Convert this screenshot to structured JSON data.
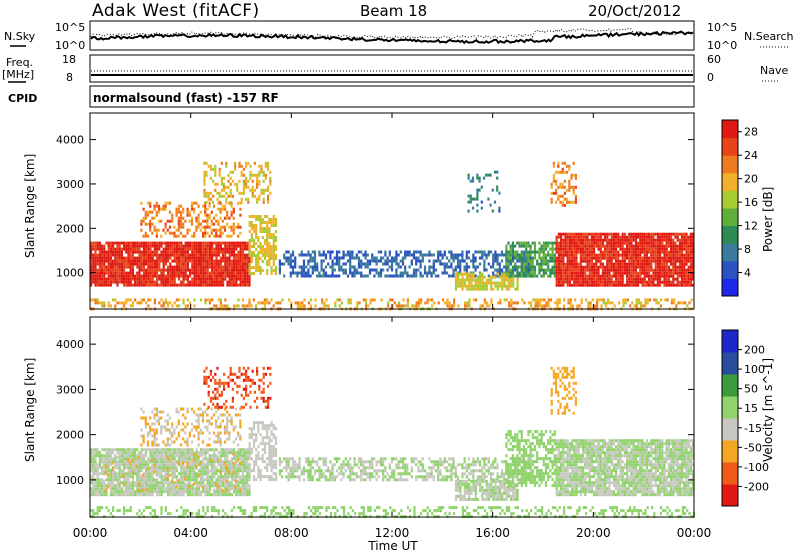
{
  "header": {
    "radar": "Adak West (fitACF)",
    "beam": "Beam 18",
    "date": "20/Oct/2012"
  },
  "top_panels": {
    "nsky_label": "N.Sky",
    "nsearch_label": "N.Search",
    "nsky_ticks": [
      "10^5",
      "10^0"
    ],
    "nsearch_ticks": [
      "10^5",
      "10^0"
    ],
    "freq_label_1": "Freq.",
    "freq_label_2": "[MHz]",
    "freq_ticks": [
      "18",
      "8"
    ],
    "nave_label": "Nave",
    "nave_ticks": [
      "60",
      "0"
    ],
    "cpid_label": "CPID",
    "cpid_text": "normalsound (fast) -157 RF"
  },
  "colors": {
    "ground_scatter": "#c8c8c0",
    "background": "#ffffff"
  },
  "chart_data": [
    {
      "type": "heatmap",
      "name": "power",
      "ylabel": "Slant Range [km]",
      "x_ticks": [
        "00:00",
        "04:00",
        "08:00",
        "12:00",
        "16:00",
        "20:00",
        "00:00"
      ],
      "xlim_hours": [
        0,
        24
      ],
      "y_ticks": [
        "1000",
        "2000",
        "3000",
        "4000"
      ],
      "ylim_km": [
        180,
        4600
      ],
      "colorbar": {
        "label": "Power [dB]",
        "ticks": [
          "4",
          "8",
          "12",
          "16",
          "20",
          "24",
          "28"
        ],
        "range": [
          0,
          30
        ],
        "colors": [
          "#1d28e8",
          "#2a52c0",
          "#3a7a9a",
          "#2e8a55",
          "#5fae3a",
          "#a6cc33",
          "#f2b12a",
          "#f07a20",
          "#e8431a",
          "#e01a12"
        ]
      },
      "regions": [
        {
          "t": [
            0.0,
            6.3
          ],
          "r": [
            700,
            1700
          ],
          "value": 28,
          "density": 0.92
        },
        {
          "t": [
            6.3,
            7.4
          ],
          "r": [
            1000,
            2300
          ],
          "value": 18,
          "density": 0.7
        },
        {
          "t": [
            2.0,
            6.0
          ],
          "r": [
            1800,
            2600
          ],
          "value": 22,
          "density": 0.45
        },
        {
          "t": [
            4.5,
            7.2
          ],
          "r": [
            2600,
            3500
          ],
          "value": 19,
          "density": 0.35
        },
        {
          "t": [
            7.5,
            17.5
          ],
          "r": [
            900,
            1500
          ],
          "value": 6,
          "density": 0.55
        },
        {
          "t": [
            14.5,
            17.0
          ],
          "r": [
            600,
            1000
          ],
          "value": 18,
          "density": 0.8
        },
        {
          "t": [
            16.5,
            18.5
          ],
          "r": [
            900,
            1700
          ],
          "value": 12,
          "density": 0.7
        },
        {
          "t": [
            18.5,
            24.0
          ],
          "r": [
            700,
            1900
          ],
          "value": 28,
          "density": 0.92
        },
        {
          "t": [
            18.3,
            19.3
          ],
          "r": [
            2500,
            3500
          ],
          "value": 22,
          "density": 0.4
        },
        {
          "t": [
            0.0,
            24.0
          ],
          "r": [
            200,
            420
          ],
          "value": 20,
          "density": 0.4
        },
        {
          "t": [
            15.0,
            16.3
          ],
          "r": [
            2400,
            3300
          ],
          "value": 8,
          "density": 0.2
        }
      ]
    },
    {
      "type": "heatmap",
      "name": "velocity",
      "ylabel": "Slant Range [km]",
      "x_ticks": [
        "00:00",
        "04:00",
        "08:00",
        "12:00",
        "16:00",
        "20:00",
        "00:00"
      ],
      "xlim_hours": [
        0,
        24
      ],
      "y_ticks": [
        "1000",
        "2000",
        "3000",
        "4000"
      ],
      "ylim_km": [
        180,
        4600
      ],
      "xlabel": "Time UT",
      "colorbar": {
        "label": "Velocity [m s^-1]",
        "ticks": [
          "-200",
          "-100",
          "-50",
          "-15",
          "15",
          "50",
          "100",
          "200"
        ],
        "range": [
          -250,
          250
        ],
        "colors": [
          "#e01a12",
          "#f05a1a",
          "#f5a623",
          "#c8c8c0",
          "#8fd36b",
          "#3c9a3a",
          "#2a4e9e",
          "#1d28c8"
        ]
      },
      "regions": [
        {
          "t": [
            0.0,
            6.3
          ],
          "r": [
            700,
            1700
          ],
          "value": 0,
          "density": 0.9
        },
        {
          "t": [
            0.5,
            6.0
          ],
          "r": [
            800,
            1600
          ],
          "value": -60,
          "density": 0.18
        },
        {
          "t": [
            6.3,
            7.4
          ],
          "r": [
            1000,
            2300
          ],
          "value": -40,
          "density": 0.6
        },
        {
          "t": [
            2.0,
            6.0
          ],
          "r": [
            1800,
            2600
          ],
          "value": -60,
          "density": 0.4
        },
        {
          "t": [
            4.5,
            7.2
          ],
          "r": [
            2600,
            3500
          ],
          "value": -180,
          "density": 0.35
        },
        {
          "t": [
            7.5,
            17.5
          ],
          "r": [
            1000,
            1500
          ],
          "value": 0,
          "density": 0.55
        },
        {
          "t": [
            14.5,
            17.0
          ],
          "r": [
            600,
            1000
          ],
          "value": 0,
          "density": 0.8
        },
        {
          "t": [
            16.5,
            18.5
          ],
          "r": [
            900,
            2100
          ],
          "value": 40,
          "density": 0.6
        },
        {
          "t": [
            18.5,
            24.0
          ],
          "r": [
            700,
            1900
          ],
          "value": 0,
          "density": 0.9
        },
        {
          "t": [
            18.3,
            19.3
          ],
          "r": [
            2500,
            3500
          ],
          "value": -100,
          "density": 0.35
        },
        {
          "t": [
            0.0,
            24.0
          ],
          "r": [
            200,
            420
          ],
          "value": 30,
          "density": 0.35
        }
      ]
    }
  ]
}
